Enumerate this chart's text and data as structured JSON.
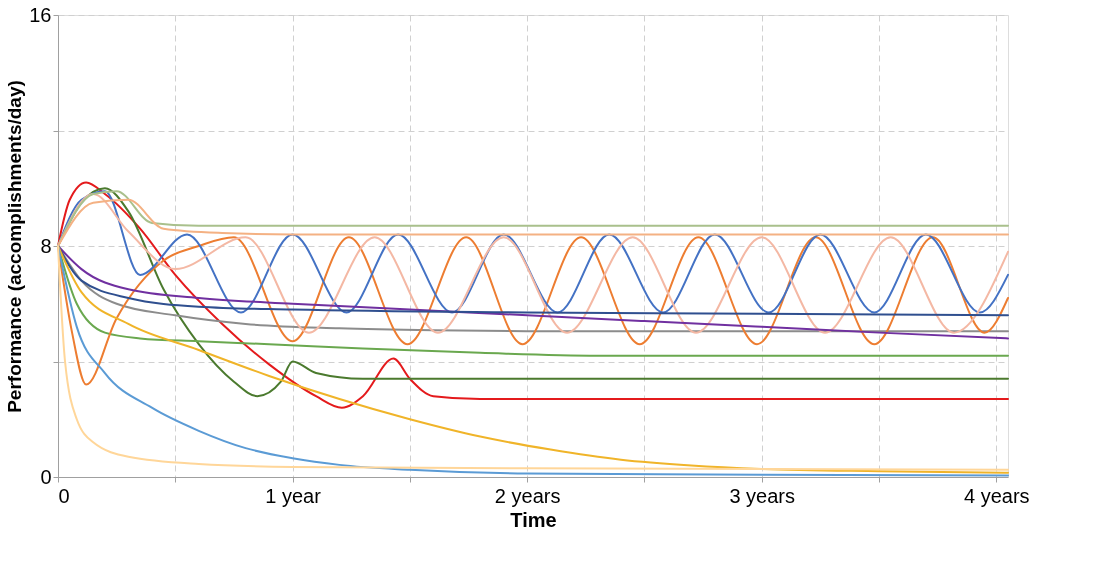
{
  "chart_data": {
    "type": "line",
    "xlabel": "Time",
    "ylabel": "Performance (accomplishments/day)",
    "xlim": [
      0,
      4.05
    ],
    "ylim": [
      0,
      16
    ],
    "xticks": [
      0,
      {
        "value": 0.5,
        "label": null
      },
      {
        "value": 1,
        "label": "1 year"
      },
      {
        "value": 1.5,
        "label": null
      },
      {
        "value": 2,
        "label": "2 years"
      },
      {
        "value": 2.5,
        "label": null
      },
      {
        "value": 3,
        "label": "3 years"
      },
      {
        "value": 3.5,
        "label": null
      },
      {
        "value": 4,
        "label": "4 years"
      }
    ],
    "yticks": [
      0,
      {
        "value": 4,
        "label": null
      },
      8,
      {
        "value": 12,
        "label": null
      },
      16
    ],
    "grid": true,
    "legend": false,
    "marker": "none",
    "line_style": "solid",
    "series": [
      {
        "color": "#e41a1c",
        "x": [
          0,
          0.05,
          0.12,
          0.2,
          0.35,
          0.5,
          0.7,
          0.9,
          1.1,
          1.21,
          1.3,
          1.43,
          1.5,
          1.6,
          1.8,
          2.5,
          3.5,
          4.05
        ],
        "values": [
          8,
          9.6,
          10.2,
          9.8,
          8.6,
          7.0,
          5.3,
          3.9,
          2.8,
          2.4,
          2.8,
          4.1,
          3.4,
          2.8,
          2.7,
          2.7,
          2.7,
          2.7
        ]
      },
      {
        "color": "#4b7a2e",
        "x": [
          0,
          0.1,
          0.2,
          0.3,
          0.45,
          0.6,
          0.75,
          0.85,
          0.95,
          1.0,
          1.1,
          1.3,
          2,
          3,
          4.05
        ],
        "values": [
          8,
          9.5,
          10.0,
          9.2,
          6.5,
          4.6,
          3.3,
          2.8,
          3.3,
          4.0,
          3.6,
          3.4,
          3.4,
          3.4,
          3.4
        ]
      },
      {
        "color": "#6aa84f",
        "x": [
          0,
          0.08,
          0.2,
          0.35,
          0.6,
          0.9,
          1.3,
          1.8,
          2.3,
          3,
          4.05
        ],
        "values": [
          8,
          6.0,
          5.0,
          4.8,
          4.7,
          4.6,
          4.45,
          4.3,
          4.2,
          4.2,
          4.2
        ]
      },
      {
        "color": "#8c8c8c",
        "x": [
          0,
          0.1,
          0.25,
          0.5,
          0.8,
          1.2,
          1.6,
          2,
          3,
          4.05
        ],
        "values": [
          8,
          6.8,
          6.0,
          5.6,
          5.3,
          5.15,
          5.08,
          5.05,
          5.05,
          5.05
        ]
      },
      {
        "color": "#ed7d31",
        "x": [
          0,
          0.06,
          0.12,
          0.25,
          0.45,
          0.6,
          0.75,
          1.0,
          1.24,
          1.49,
          1.74,
          1.98,
          2.23,
          2.48,
          2.73,
          2.98,
          3.23,
          3.48,
          3.73,
          3.95,
          4.05
        ],
        "values": [
          8,
          5.0,
          3.2,
          5.5,
          7.5,
          8.0,
          8.3,
          4.7,
          8.3,
          4.6,
          8.3,
          4.6,
          8.3,
          4.6,
          8.3,
          4.6,
          8.3,
          4.6,
          8.3,
          5.0,
          6.2
        ]
      },
      {
        "color": "#4472c4",
        "x": [
          0,
          0.1,
          0.2,
          0.35,
          0.55,
          0.78,
          1.0,
          1.23,
          1.45,
          1.68,
          1.9,
          2.13,
          2.35,
          2.58,
          2.8,
          3.03,
          3.25,
          3.48,
          3.7,
          3.93,
          4.05
        ],
        "values": [
          8,
          9.6,
          9.9,
          7.0,
          8.4,
          5.7,
          8.4,
          5.7,
          8.4,
          5.7,
          8.4,
          5.7,
          8.4,
          5.7,
          8.4,
          5.7,
          8.4,
          5.7,
          8.4,
          5.7,
          7.0
        ]
      },
      {
        "color": "#f4b8a4",
        "x": [
          0,
          0.15,
          0.3,
          0.5,
          0.8,
          1.07,
          1.35,
          1.62,
          1.9,
          2.17,
          2.45,
          2.72,
          3.0,
          3.27,
          3.55,
          3.82,
          4.05
        ],
        "values": [
          8,
          9.8,
          8.5,
          7.2,
          8.3,
          5.0,
          8.3,
          5.0,
          8.3,
          5.0,
          8.3,
          5.0,
          8.3,
          5.0,
          8.3,
          5.0,
          7.8
        ]
      },
      {
        "color": "#a9c08c",
        "x": [
          0,
          0.15,
          0.25,
          0.4,
          0.6,
          1,
          2,
          3,
          4.05
        ],
        "values": [
          8,
          9.8,
          9.9,
          8.8,
          8.7,
          8.7,
          8.7,
          8.7,
          8.7
        ]
      },
      {
        "color": "#f4b183",
        "x": [
          0,
          0.15,
          0.3,
          0.45,
          0.7,
          1,
          2,
          3,
          4.05
        ],
        "values": [
          8,
          9.5,
          9.6,
          8.6,
          8.45,
          8.4,
          8.4,
          8.4,
          8.4
        ]
      },
      {
        "color": "#7030a0",
        "x": [
          0,
          0.1,
          0.3,
          0.6,
          1.0,
          1.5,
          2.0,
          2.5,
          3.0,
          3.5,
          4.05
        ],
        "values": [
          8,
          7.2,
          6.5,
          6.2,
          6.0,
          5.8,
          5.6,
          5.4,
          5.2,
          5.0,
          4.8
        ]
      },
      {
        "color": "#2f4f8f",
        "x": [
          0,
          0.1,
          0.3,
          0.6,
          1,
          2,
          3,
          4.05
        ],
        "values": [
          8,
          6.8,
          6.2,
          5.9,
          5.8,
          5.7,
          5.65,
          5.6
        ]
      },
      {
        "color": "#f0b429",
        "x": [
          0,
          0.1,
          0.3,
          0.6,
          0.9,
          1.2,
          1.5,
          1.8,
          2.1,
          2.4,
          2.7,
          3.0,
          3.5,
          4.05
        ],
        "values": [
          8,
          6.4,
          5.3,
          4.4,
          3.5,
          2.7,
          2.0,
          1.4,
          0.95,
          0.6,
          0.4,
          0.28,
          0.2,
          0.15
        ]
      },
      {
        "color": "#5b9bd5",
        "x": [
          0,
          0.08,
          0.2,
          0.4,
          0.6,
          0.8,
          1.0,
          1.2,
          1.5,
          2,
          3,
          4.05
        ],
        "values": [
          8,
          5.2,
          3.6,
          2.4,
          1.6,
          1.0,
          0.65,
          0.42,
          0.25,
          0.12,
          0.08,
          0.05
        ]
      },
      {
        "color": "#ffd699",
        "x": [
          0,
          0.03,
          0.08,
          0.15,
          0.3,
          0.6,
          1,
          2,
          3,
          4.05
        ],
        "values": [
          8,
          4.0,
          2.0,
          1.2,
          0.7,
          0.45,
          0.35,
          0.3,
          0.28,
          0.25
        ]
      }
    ]
  }
}
